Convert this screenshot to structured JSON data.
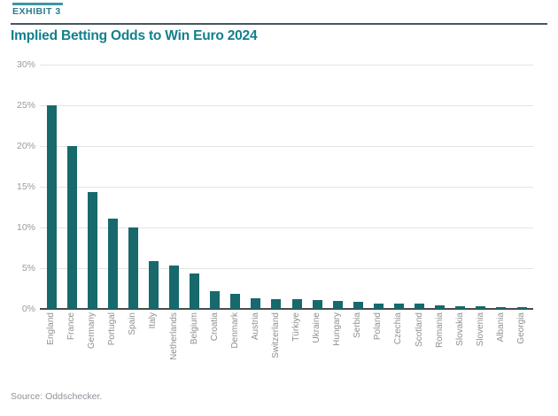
{
  "header": {
    "exhibit_label": "EXHIBIT 3",
    "title": "Implied Betting Odds to Win Euro 2024"
  },
  "footer": {
    "source": "Source: Oddschecker."
  },
  "colors": {
    "accent-line": "#3D98A0",
    "exhibit-text": "#2C7A8C",
    "rule": "#47585F",
    "title-text": "#12808D",
    "bar": "#17696C",
    "grid": "#E3E3E3",
    "baseline": "#4B4B4B",
    "ytick-text": "#9A9A9A",
    "xlabel-text": "#8F8F8F",
    "source-text": "#8D9297"
  },
  "chart_data": {
    "type": "bar",
    "title": "Implied Betting Odds to Win Euro 2024",
    "categories": [
      "England",
      "France",
      "Germany",
      "Portugal",
      "Spain",
      "Italy",
      "Netherlands",
      "Belgium",
      "Croatia",
      "Denmark",
      "Austria",
      "Switzerland",
      "Türkiye",
      "Ukraine",
      "Hungary",
      "Serbia",
      "Poland",
      "Czechia",
      "Scotland",
      "Romania",
      "Slovakia",
      "Slovenia",
      "Albania",
      "Georgia"
    ],
    "values": [
      25.0,
      20.0,
      14.3,
      11.1,
      10.0,
      5.9,
      5.3,
      4.4,
      2.2,
      1.8,
      1.3,
      1.2,
      1.2,
      1.1,
      1.0,
      0.9,
      0.7,
      0.7,
      0.7,
      0.4,
      0.3,
      0.3,
      0.2,
      0.2
    ],
    "xlabel": "",
    "ylabel": "",
    "ylim": [
      0,
      30
    ],
    "yticks": [
      30,
      25,
      20,
      15,
      10,
      5,
      0
    ],
    "ytick_labels": [
      "30%",
      "25%",
      "20%",
      "15%",
      "10%",
      "5%",
      "0%"
    ],
    "grid": "horizontal",
    "legend": "none",
    "bar_orientation": "vertical",
    "x_label_rotation": 90
  }
}
